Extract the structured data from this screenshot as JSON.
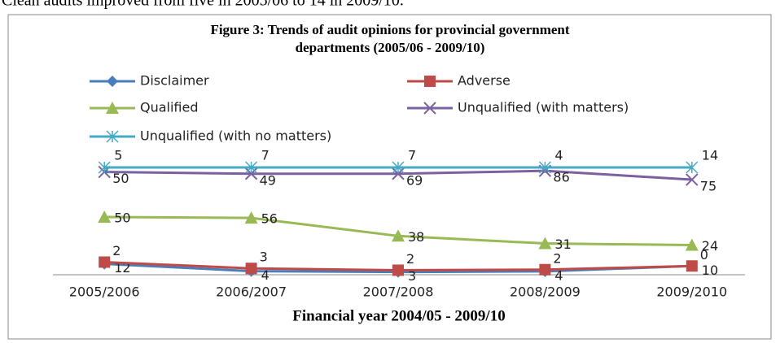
{
  "intro_text": "Clean audits improved from five in 2005/06 to 14 in 2009/10.",
  "chart_data": {
    "type": "line",
    "stacking": "percent",
    "title": [
      "Figure 3: Trends of audit opinions for provincial government",
      "departments (2005/06 - 2009/10)"
    ],
    "x_label": "Financial year 2004/05 - 2009/10",
    "categories": [
      "2005/2006",
      "2006/2007",
      "2007/2008",
      "2008/2009",
      "2009/2010"
    ],
    "series": [
      {
        "name": "Disclaimer",
        "color": "#4a7ebb",
        "marker": "diamond",
        "values": [
          12,
          4,
          3,
          4,
          10
        ]
      },
      {
        "name": "Adverse",
        "color": "#be4b48",
        "marker": "square",
        "values": [
          2,
          3,
          2,
          2,
          0
        ]
      },
      {
        "name": "Qualified",
        "color": "#98b954",
        "marker": "triangle",
        "values": [
          50,
          56,
          38,
          31,
          24
        ]
      },
      {
        "name": "Unqualified (with matters)",
        "color": "#7d60a0",
        "marker": "x",
        "values": [
          50,
          49,
          69,
          86,
          75
        ]
      },
      {
        "name": "Unqualified (with no matters)",
        "color": "#46aac5",
        "marker": "star",
        "values": [
          5,
          7,
          7,
          4,
          14
        ]
      }
    ],
    "legend": "top"
  }
}
